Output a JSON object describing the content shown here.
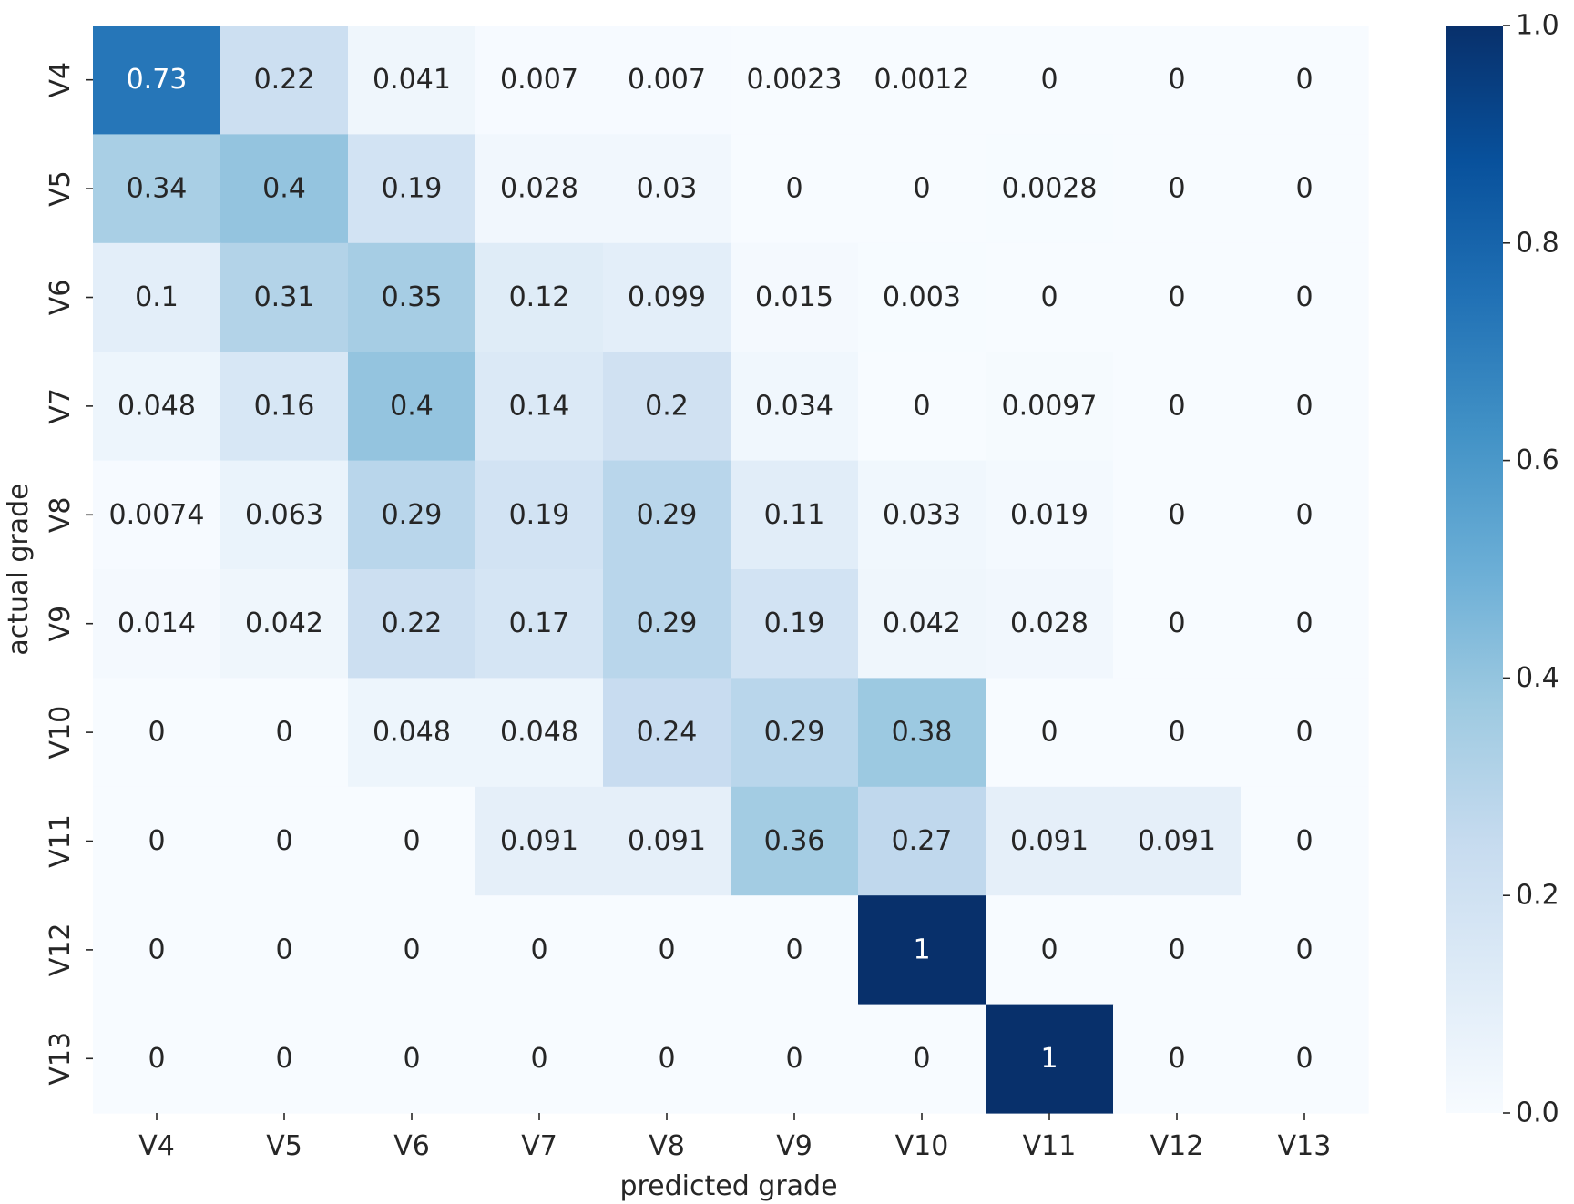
{
  "chart_data": {
    "type": "heatmap",
    "title": "",
    "xlabel": "predicted grade",
    "ylabel": "actual grade",
    "x_categories": [
      "V4",
      "V5",
      "V6",
      "V7",
      "V8",
      "V9",
      "V10",
      "V11",
      "V12",
      "V13"
    ],
    "y_categories": [
      "V4",
      "V5",
      "V6",
      "V7",
      "V8",
      "V9",
      "V10",
      "V11",
      "V12",
      "V13"
    ],
    "values": [
      [
        0.73,
        0.22,
        0.041,
        0.007,
        0.007,
        0.0023,
        0.0012,
        0,
        0,
        0
      ],
      [
        0.34,
        0.4,
        0.19,
        0.028,
        0.03,
        0,
        0,
        0.0028,
        0,
        0
      ],
      [
        0.1,
        0.31,
        0.35,
        0.12,
        0.099,
        0.015,
        0.003,
        0,
        0,
        0
      ],
      [
        0.048,
        0.16,
        0.4,
        0.14,
        0.2,
        0.034,
        0,
        0.0097,
        0,
        0
      ],
      [
        0.0074,
        0.063,
        0.29,
        0.19,
        0.29,
        0.11,
        0.033,
        0.019,
        0,
        0
      ],
      [
        0.014,
        0.042,
        0.22,
        0.17,
        0.29,
        0.19,
        0.042,
        0.028,
        0,
        0
      ],
      [
        0,
        0,
        0.048,
        0.048,
        0.24,
        0.29,
        0.38,
        0,
        0,
        0
      ],
      [
        0,
        0,
        0,
        0.091,
        0.091,
        0.36,
        0.27,
        0.091,
        0.091,
        0
      ],
      [
        0,
        0,
        0,
        0,
        0,
        0,
        1,
        0,
        0,
        0
      ],
      [
        0,
        0,
        0,
        0,
        0,
        0,
        0,
        1,
        0,
        0
      ]
    ],
    "colorbar": {
      "range": [
        0.0,
        1.0
      ],
      "ticks": [
        0.0,
        0.2,
        0.4,
        0.6,
        0.8,
        1.0
      ],
      "tick_labels": [
        "0.0",
        "0.2",
        "0.4",
        "0.6",
        "0.8",
        "1.0"
      ],
      "colormap": "Blues"
    },
    "annotation_threshold": 0.5,
    "annotation_color_light": "#ffffff",
    "annotation_color_dark": "#262626"
  }
}
